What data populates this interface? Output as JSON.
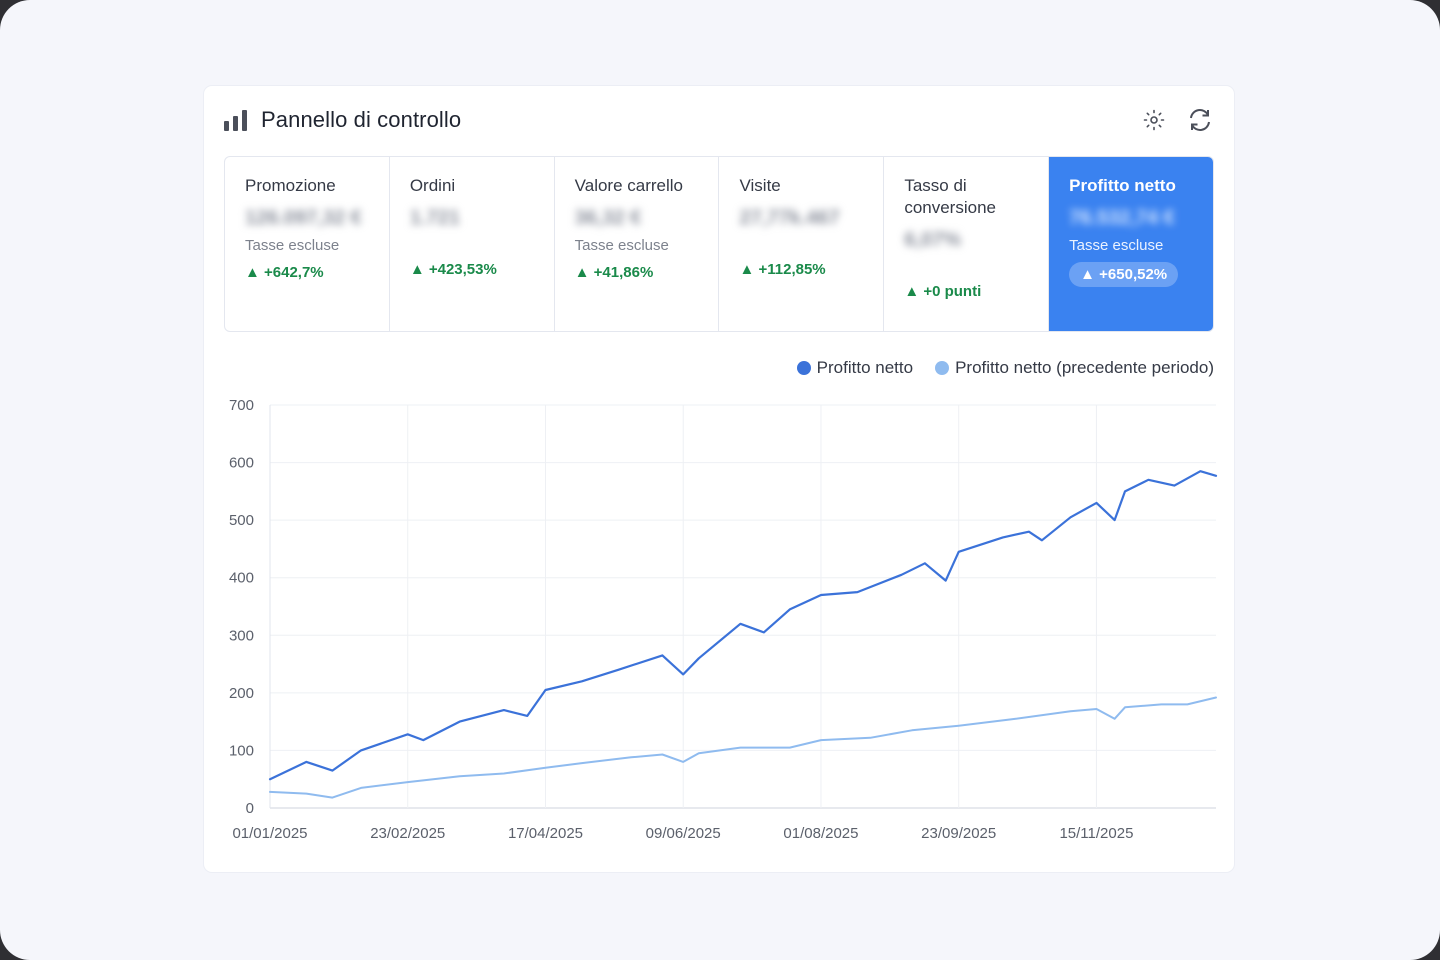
{
  "header": {
    "title": "Pannello di controllo",
    "icons": [
      "bar-chart-icon",
      "settings-icon",
      "refresh-icon"
    ]
  },
  "kpis": [
    {
      "label": "Promozione",
      "value": "126.097,32 €",
      "sub": "Tasse escluse",
      "delta": "▲ +642,7%"
    },
    {
      "label": "Ordini",
      "value": "1.721",
      "sub": "",
      "delta": "▲ +423,53%"
    },
    {
      "label": "Valore carrello",
      "value": "36,32 €",
      "sub": "Tasse escluse",
      "delta": "▲ +41,86%"
    },
    {
      "label": "Visite",
      "value": "27,77k.467",
      "sub": "",
      "delta": "▲ +112,85%"
    },
    {
      "label": "Tasso di conversione",
      "value": "6,07%",
      "sub": "",
      "delta": "▲ +0 punti"
    },
    {
      "label": "Profitto netto",
      "value": "76.532,74 €",
      "sub": "Tasse escluse",
      "delta": "▲ +650,52%"
    }
  ],
  "colors": {
    "accent": "#3a82f0",
    "series_current": "#3b72d9",
    "series_previous": "#8fbbef",
    "positive": "#1a8a4a"
  },
  "chart_data": {
    "type": "line",
    "legend_position": "top-right",
    "grid": true,
    "x_ticks": [
      "01/01/2025",
      "23/02/2025",
      "17/04/2025",
      "09/06/2025",
      "01/08/2025",
      "23/09/2025",
      "15/11/2025"
    ],
    "x_range": [
      "01/01/2025",
      "31/12/2025"
    ],
    "ylim": [
      0,
      700
    ],
    "y_ticks": [
      0,
      100,
      200,
      300,
      400,
      500,
      600,
      700
    ],
    "series": [
      {
        "name": "Profitto netto",
        "color": "#3b72d9",
        "points": [
          [
            "01/01/2025",
            50
          ],
          [
            "15/01/2025",
            80
          ],
          [
            "25/01/2025",
            65
          ],
          [
            "05/02/2025",
            100
          ],
          [
            "23/02/2025",
            128
          ],
          [
            "01/03/2025",
            118
          ],
          [
            "15/03/2025",
            150
          ],
          [
            "01/04/2025",
            170
          ],
          [
            "10/04/2025",
            160
          ],
          [
            "17/04/2025",
            205
          ],
          [
            "01/05/2025",
            220
          ],
          [
            "15/05/2025",
            240
          ],
          [
            "01/06/2025",
            265
          ],
          [
            "09/06/2025",
            232
          ],
          [
            "15/06/2025",
            260
          ],
          [
            "01/07/2025",
            320
          ],
          [
            "10/07/2025",
            305
          ],
          [
            "20/07/2025",
            345
          ],
          [
            "01/08/2025",
            370
          ],
          [
            "15/08/2025",
            375
          ],
          [
            "01/09/2025",
            405
          ],
          [
            "10/09/2025",
            425
          ],
          [
            "18/09/2025",
            395
          ],
          [
            "23/09/2025",
            445
          ],
          [
            "10/10/2025",
            470
          ],
          [
            "20/10/2025",
            480
          ],
          [
            "25/10/2025",
            465
          ],
          [
            "05/11/2025",
            505
          ],
          [
            "15/11/2025",
            530
          ],
          [
            "22/11/2025",
            500
          ],
          [
            "26/11/2025",
            550
          ],
          [
            "05/12/2025",
            570
          ],
          [
            "15/12/2025",
            560
          ],
          [
            "25/12/2025",
            585
          ],
          [
            "31/12/2025",
            577
          ]
        ]
      },
      {
        "name": "Profitto netto (precedente periodo)",
        "color": "#8fbbef",
        "points": [
          [
            "01/01/2025",
            28
          ],
          [
            "15/01/2025",
            25
          ],
          [
            "25/01/2025",
            18
          ],
          [
            "05/02/2025",
            35
          ],
          [
            "23/02/2025",
            45
          ],
          [
            "15/03/2025",
            55
          ],
          [
            "01/04/2025",
            60
          ],
          [
            "17/04/2025",
            70
          ],
          [
            "01/05/2025",
            78
          ],
          [
            "20/05/2025",
            88
          ],
          [
            "01/06/2025",
            93
          ],
          [
            "09/06/2025",
            80
          ],
          [
            "15/06/2025",
            95
          ],
          [
            "01/07/2025",
            105
          ],
          [
            "20/07/2025",
            105
          ],
          [
            "01/08/2025",
            118
          ],
          [
            "20/08/2025",
            122
          ],
          [
            "05/09/2025",
            135
          ],
          [
            "23/09/2025",
            143
          ],
          [
            "15/10/2025",
            155
          ],
          [
            "05/11/2025",
            168
          ],
          [
            "15/11/2025",
            172
          ],
          [
            "22/11/2025",
            155
          ],
          [
            "26/11/2025",
            175
          ],
          [
            "10/12/2025",
            180
          ],
          [
            "20/12/2025",
            180
          ],
          [
            "31/12/2025",
            192
          ]
        ]
      }
    ]
  }
}
